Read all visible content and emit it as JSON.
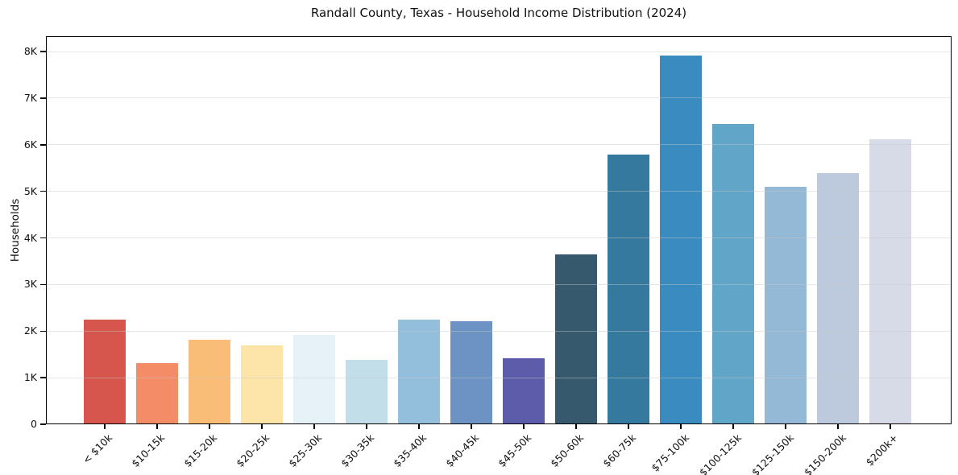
{
  "figure": {
    "title": "Randall County, Texas - Household Income Distribution (2024)",
    "ylabel": "Households"
  },
  "chart_data": {
    "type": "bar",
    "title": "Randall County, Texas - Household Income Distribution (2024)",
    "xlabel": "",
    "ylabel": "Households",
    "grid": "horizontal-only",
    "legend_position": "none",
    "categories": [
      "< $10k",
      "$10-15k",
      "$15-20k",
      "$20-25k",
      "$25-30k",
      "$30-35k",
      "$35-40k",
      "$40-45k",
      "$45-50k",
      "$50-60k",
      "$60-75k",
      "$75-100k",
      "$100-125k",
      "$125-150k",
      "$150-200k",
      "$200k+"
    ],
    "values": [
      2260,
      1330,
      1820,
      1710,
      1920,
      1400,
      2260,
      2220,
      1430,
      3660,
      5790,
      7930,
      6450,
      5100,
      5400,
      6120
    ],
    "bar_colors": [
      "#d6564d",
      "#f48c68",
      "#f9bd78",
      "#fde5a9",
      "#e7f2f8",
      "#c2dfe9",
      "#94bfdc",
      "#6c93c4",
      "#5d5caa",
      "#36596d",
      "#36799f",
      "#3a8cc0",
      "#61a5c8",
      "#94b9d6",
      "#bdcade",
      "#d7dae7"
    ],
    "ylim": [
      0,
      8330
    ],
    "ytick_values": [
      0,
      1000,
      2000,
      3000,
      4000,
      5000,
      6000,
      7000,
      8000
    ],
    "ytick_labels": [
      "0",
      "1K",
      "2K",
      "3K",
      "4K",
      "5K",
      "6K",
      "7K",
      "8K"
    ]
  }
}
